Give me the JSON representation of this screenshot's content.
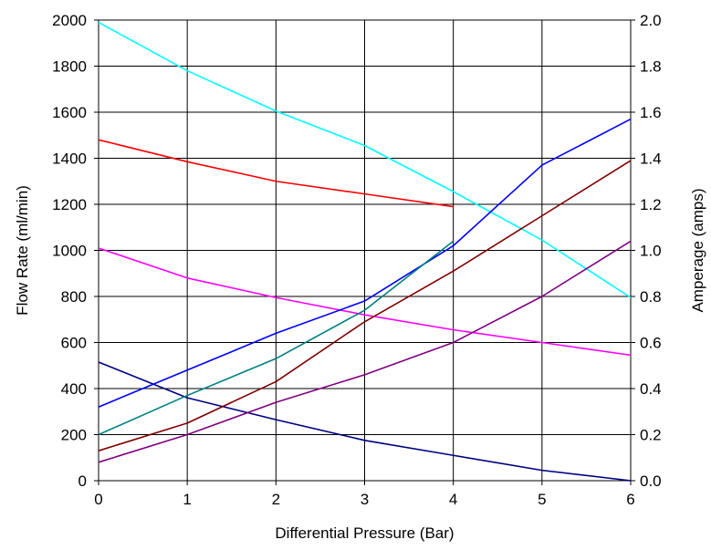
{
  "chart_data": {
    "type": "line",
    "title": "",
    "xlabel": "Differential Pressure (Bar)",
    "ylabel": "Flow Rate (ml/min)",
    "y2label": "Amperage (amps)",
    "xlim": [
      0,
      6
    ],
    "ylim": [
      0,
      2000
    ],
    "y2lim": [
      0,
      2.0
    ],
    "x_ticks": [
      "0",
      "1",
      "2",
      "3",
      "4",
      "5",
      "6"
    ],
    "y_ticks": [
      "0",
      "200",
      "400",
      "600",
      "800",
      "1000",
      "1200",
      "1400",
      "1600",
      "1800",
      "2000"
    ],
    "y2_ticks": [
      "0.0",
      "0.2",
      "0.4",
      "0.6",
      "0.8",
      "1.0",
      "1.2",
      "1.4",
      "1.6",
      "1.8",
      "2.0"
    ],
    "grid": true,
    "legend": "none",
    "series": [
      {
        "color": "#00FFFF",
        "axis": "left",
        "x": [
          0,
          1,
          2,
          3,
          4,
          5,
          6
        ],
        "values": [
          1990,
          1780,
          1605,
          1455,
          1255,
          1045,
          795
        ]
      },
      {
        "color": "#FF0000",
        "axis": "left",
        "x": [
          0,
          1,
          2,
          3,
          4
        ],
        "values": [
          1480,
          1385,
          1300,
          1245,
          1190
        ]
      },
      {
        "color": "#FF00FF",
        "axis": "left",
        "x": [
          0,
          1,
          2,
          3,
          4,
          5,
          6
        ],
        "values": [
          1010,
          880,
          795,
          720,
          655,
          600,
          545
        ]
      },
      {
        "color": "#000080",
        "axis": "left",
        "x": [
          0,
          1,
          2,
          3,
          4,
          5,
          6
        ],
        "values": [
          515,
          360,
          265,
          175,
          110,
          45,
          0
        ]
      },
      {
        "color": "#0000FF",
        "axis": "right",
        "x": [
          0,
          1,
          2,
          3,
          4,
          5,
          6
        ],
        "values": [
          0.32,
          0.48,
          0.64,
          0.78,
          1.02,
          1.37,
          1.57
        ]
      },
      {
        "color": "#008080",
        "axis": "right",
        "x": [
          0,
          1,
          2,
          3,
          4
        ],
        "values": [
          0.2,
          0.37,
          0.53,
          0.74,
          1.04
        ]
      },
      {
        "color": "#800000",
        "axis": "right",
        "x": [
          0,
          1,
          2,
          3,
          4,
          5,
          6
        ],
        "values": [
          0.13,
          0.25,
          0.43,
          0.69,
          0.91,
          1.15,
          1.39
        ]
      },
      {
        "color": "#800080",
        "axis": "right",
        "x": [
          0,
          1,
          2,
          3,
          4,
          5,
          6
        ],
        "values": [
          0.08,
          0.2,
          0.34,
          0.46,
          0.6,
          0.8,
          1.04
        ]
      }
    ]
  }
}
